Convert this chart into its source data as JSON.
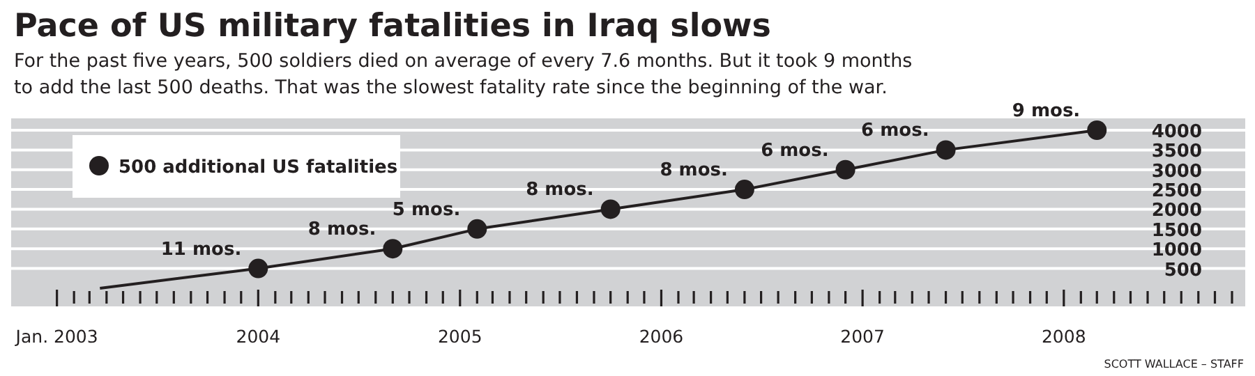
{
  "chart_data": {
    "type": "line",
    "title": "Pace of US military fatalities in Iraq slows",
    "subtitle": "For the past five years, 500 soldiers died on average of every 7.6 months. But it took 9 months\nto add the last 500 deaths. That was the slowest fatality rate since the beginning of the war.",
    "x": [
      "2003-03-20",
      "2004-01",
      "2004-09",
      "2005-02",
      "2005-10",
      "2006-06",
      "2006-12",
      "2007-06",
      "2008-03"
    ],
    "series": [
      {
        "name": "500 additional US fatalities",
        "color": "#231f20",
        "values": [
          0,
          500,
          1000,
          1500,
          2000,
          2500,
          3000,
          3500,
          4000
        ]
      }
    ],
    "marker": "circle",
    "grid": "y",
    "legend": "top left",
    "xlim": [
      "2002-10-10",
      "2008-11-25"
    ],
    "xticks": [
      {
        "value": "2003-01",
        "label": "Jan. 2003"
      },
      {
        "value": "2003-02",
        "label": null
      },
      {
        "value": "2003-03",
        "label": null
      },
      {
        "value": "2003-04",
        "label": null
      },
      {
        "value": "2003-05",
        "label": null
      },
      {
        "value": "2003-06",
        "label": null
      },
      {
        "value": "2003-07",
        "label": null
      },
      {
        "value": "2003-08",
        "label": null
      },
      {
        "value": "2003-09",
        "label": null
      },
      {
        "value": "2003-10",
        "label": null
      },
      {
        "value": "2003-11",
        "label": null
      },
      {
        "value": "2003-12",
        "label": null
      },
      {
        "value": "2004-01",
        "label": "2004"
      },
      {
        "value": "2004-02",
        "label": null
      },
      {
        "value": "2004-03",
        "label": null
      },
      {
        "value": "2004-04",
        "label": null
      },
      {
        "value": "2004-05",
        "label": null
      },
      {
        "value": "2004-06",
        "label": null
      },
      {
        "value": "2004-07",
        "label": null
      },
      {
        "value": "2004-08",
        "label": null
      },
      {
        "value": "2004-09",
        "label": null
      },
      {
        "value": "2004-10",
        "label": null
      },
      {
        "value": "2004-11",
        "label": null
      },
      {
        "value": "2004-12",
        "label": null
      },
      {
        "value": "2005-01",
        "label": "2005"
      },
      {
        "value": "2005-02",
        "label": null
      },
      {
        "value": "2005-03",
        "label": null
      },
      {
        "value": "2005-04",
        "label": null
      },
      {
        "value": "2005-05",
        "label": null
      },
      {
        "value": "2005-06",
        "label": null
      },
      {
        "value": "2005-07",
        "label": null
      },
      {
        "value": "2005-08",
        "label": null
      },
      {
        "value": "2005-09",
        "label": null
      },
      {
        "value": "2005-10",
        "label": null
      },
      {
        "value": "2005-11",
        "label": null
      },
      {
        "value": "2005-12",
        "label": null
      },
      {
        "value": "2006-01",
        "label": "2006"
      },
      {
        "value": "2006-02",
        "label": null
      },
      {
        "value": "2006-03",
        "label": null
      },
      {
        "value": "2006-04",
        "label": null
      },
      {
        "value": "2006-05",
        "label": null
      },
      {
        "value": "2006-06",
        "label": null
      },
      {
        "value": "2006-07",
        "label": null
      },
      {
        "value": "2006-08",
        "label": null
      },
      {
        "value": "2006-09",
        "label": null
      },
      {
        "value": "2006-10",
        "label": null
      },
      {
        "value": "2006-11",
        "label": null
      },
      {
        "value": "2006-12",
        "label": null
      },
      {
        "value": "2007-01",
        "label": "2007"
      },
      {
        "value": "2007-02",
        "label": null
      },
      {
        "value": "2007-03",
        "label": null
      },
      {
        "value": "2007-04",
        "label": null
      },
      {
        "value": "2007-05",
        "label": null
      },
      {
        "value": "2007-06",
        "label": null
      },
      {
        "value": "2007-07",
        "label": null
      },
      {
        "value": "2007-08",
        "label": null
      },
      {
        "value": "2007-09",
        "label": null
      },
      {
        "value": "2007-10",
        "label": null
      },
      {
        "value": "2007-11",
        "label": null
      },
      {
        "value": "2007-12",
        "label": null
      },
      {
        "value": "2008-01",
        "label": "2008"
      },
      {
        "value": "2008-02",
        "label": null
      },
      {
        "value": "2008-03",
        "label": null
      },
      {
        "value": "2008-04",
        "label": null
      },
      {
        "value": "2008-05",
        "label": null
      },
      {
        "value": "2008-06",
        "label": null
      },
      {
        "value": "2008-07",
        "label": null
      },
      {
        "value": "2008-08",
        "label": null
      },
      {
        "value": "2008-09",
        "label": null
      },
      {
        "value": "2008-10",
        "label": null
      },
      {
        "value": "2008-11",
        "label": null
      }
    ],
    "ylim": [
      -460,
      4300
    ],
    "yticks": [
      500,
      1000,
      1500,
      2000,
      2500,
      3000,
      3500,
      4000
    ],
    "annotations": [
      {
        "text": "11 mos.",
        "x": "2004-01",
        "y": 500
      },
      {
        "text": "8 mos.",
        "x": "2004-09",
        "y": 1000
      },
      {
        "text": "5 mos.",
        "x": "2005-02",
        "y": 1500
      },
      {
        "text": "8 mos.",
        "x": "2005-10",
        "y": 2000
      },
      {
        "text": "8 mos.",
        "x": "2006-06",
        "y": 2500
      },
      {
        "text": "6 mos.",
        "x": "2006-12",
        "y": 3000
      },
      {
        "text": "6 mos.",
        "x": "2007-06",
        "y": 3500
      },
      {
        "text": "9 mos.",
        "x": "2008-03",
        "y": 4000
      },
      "SCOTT WALLACE – STAFF"
    ]
  }
}
